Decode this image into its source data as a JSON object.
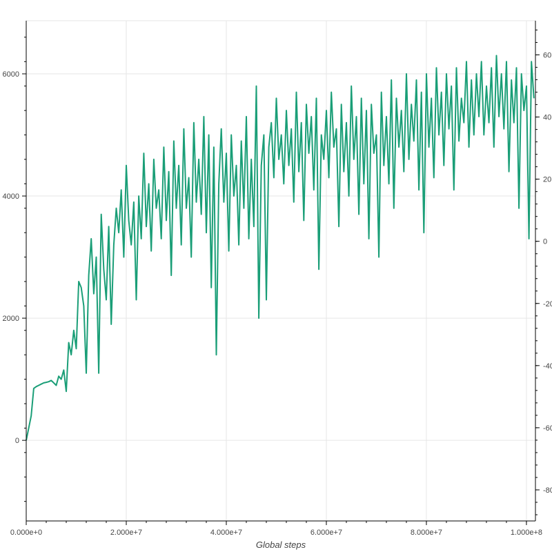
{
  "chart_data": {
    "type": "line",
    "title": "",
    "xlabel": "Global steps",
    "ylabel": "",
    "xlim": [
      0,
      101800000.0
    ],
    "ylim": [
      -1320,
      6870
    ],
    "y2lim": [
      -90,
      71
    ],
    "grid": true,
    "legend": "none",
    "color": "#1a9e77",
    "x_ticks": [
      {
        "value": 0,
        "label": "0.000e+0"
      },
      {
        "value": 20000000.0,
        "label": "2.000e+7"
      },
      {
        "value": 40000000.0,
        "label": "4.000e+7"
      },
      {
        "value": 60000000.0,
        "label": "6.000e+7"
      },
      {
        "value": 80000000.0,
        "label": "8.000e+7"
      },
      {
        "value": 100000000.0,
        "label": "1.000e+8"
      }
    ],
    "y_ticks": [
      {
        "value": 0,
        "label": "0"
      },
      {
        "value": 2000,
        "label": "2000"
      },
      {
        "value": 4000,
        "label": "4000"
      },
      {
        "value": 6000,
        "label": "6000"
      }
    ],
    "y2_ticks": [
      {
        "value": 60,
        "label": "60"
      },
      {
        "value": 40,
        "label": "40"
      },
      {
        "value": 20,
        "label": "20"
      },
      {
        "value": 0,
        "label": "0"
      },
      {
        "value": -20,
        "label": "-20"
      },
      {
        "value": -40,
        "label": "-40"
      },
      {
        "value": -60,
        "label": "-60"
      },
      {
        "value": -80,
        "label": "-80"
      }
    ],
    "series": [
      {
        "x_start": 0,
        "x_step": 500000.0,
        "values": [
          0,
          200,
          400,
          850,
          880,
          900,
          920,
          940,
          950,
          960,
          980,
          940,
          900,
          1050,
          1000,
          1150,
          800,
          1600,
          1400,
          1800,
          1500,
          2600,
          2500,
          2200,
          1100,
          2700,
          3300,
          2400,
          3000,
          1100,
          3700,
          2800,
          2300,
          3500,
          1900,
          3200,
          3800,
          3400,
          4100,
          3000,
          4500,
          3600,
          3200,
          3900,
          2300,
          4000,
          3300,
          4700,
          3500,
          4200,
          3100,
          4600,
          3800,
          4100,
          3300,
          4800,
          3600,
          4400,
          2700,
          4900,
          3800,
          4500,
          3200,
          5100,
          3800,
          4300,
          3000,
          5200,
          3900,
          4600,
          3700,
          5300,
          3400,
          5000,
          2500,
          4800,
          1400,
          4200,
          5100,
          3900,
          4700,
          3100,
          5000,
          4000,
          4500,
          3200,
          4900,
          3800,
          5300,
          3300,
          4600,
          3500,
          5800,
          2000,
          4500,
          5000,
          2300,
          4800,
          5200,
          4300,
          5600,
          4600,
          5000,
          4200,
          5400,
          4500,
          5100,
          3900,
          5700,
          4400,
          5200,
          3600,
          5500,
          4700,
          5300,
          4100,
          5600,
          2800,
          5000,
          4600,
          5400,
          4300,
          5700,
          4800,
          5100,
          3500,
          5500,
          4400,
          5200,
          4000,
          5800,
          4600,
          5300,
          3700,
          5600,
          4200,
          5400,
          3300,
          5500,
          4700,
          5000,
          3000,
          5700,
          4500,
          5300,
          4200,
          5900,
          3800,
          5600,
          4800,
          5400,
          4400,
          6000,
          4600,
          5500,
          4900,
          5900,
          4100,
          5700,
          3400,
          6000,
          4800,
          5600,
          4300,
          6100,
          5000,
          5700,
          4500,
          6000,
          5100,
          5800,
          4100,
          6100,
          4900,
          5600,
          5200,
          6200,
          4800,
          5900,
          5000,
          6000,
          5300,
          6200,
          5000,
          5800,
          5200,
          6100,
          4800,
          6300,
          5300,
          6000,
          5100,
          6200,
          4400,
          5900,
          5200,
          6100,
          3800,
          6000,
          5400,
          5800,
          3300,
          6200,
          5600
        ]
      }
    ]
  }
}
